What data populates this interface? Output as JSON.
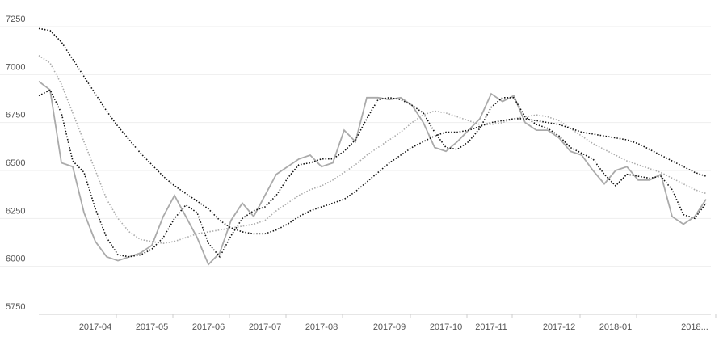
{
  "chart_data": {
    "type": "line",
    "categories": [
      null,
      null,
      null,
      null,
      null,
      "2017-04",
      null,
      null,
      null,
      null,
      "2017-05",
      null,
      null,
      null,
      null,
      "2017-06",
      null,
      null,
      null,
      null,
      "2017-07",
      null,
      null,
      null,
      null,
      "2017-08",
      null,
      null,
      null,
      null,
      null,
      "2017-09",
      null,
      null,
      null,
      null,
      "2017-10",
      null,
      null,
      null,
      "2017-11",
      null,
      null,
      null,
      null,
      null,
      "2017-12",
      null,
      null,
      null,
      null,
      "2018-01",
      null,
      null,
      null,
      null,
      null,
      null,
      "2018...",
      null
    ],
    "series": [
      {
        "color": "#aaaaaa",
        "dash": false,
        "values": [
          6965,
          6920,
          6540,
          6520,
          6280,
          6130,
          6050,
          6030,
          6050,
          6070,
          6110,
          6260,
          6370,
          6260,
          6150,
          6010,
          6070,
          6240,
          6330,
          6260,
          6370,
          6480,
          6520,
          6560,
          6580,
          6520,
          6540,
          6710,
          6650,
          6880,
          6880,
          6870,
          6880,
          6840,
          6750,
          6620,
          6600,
          6650,
          6710,
          6770,
          6900,
          6860,
          6890,
          6750,
          6710,
          6710,
          6670,
          6600,
          6580,
          6500,
          6430,
          6500,
          6520,
          6450,
          6450,
          6480,
          6260,
          6220,
          6260,
          6350
        ]
      },
      {
        "color": "#111111",
        "dash": true,
        "values": [
          6890,
          6920,
          6800,
          6550,
          6490,
          6300,
          6150,
          6060,
          6050,
          6060,
          6090,
          6150,
          6250,
          6320,
          6280,
          6120,
          6050,
          6160,
          6250,
          6290,
          6310,
          6370,
          6460,
          6530,
          6540,
          6560,
          6560,
          6600,
          6660,
          6770,
          6870,
          6880,
          6870,
          6840,
          6800,
          6700,
          6620,
          6610,
          6650,
          6720,
          6830,
          6880,
          6880,
          6780,
          6740,
          6720,
          6680,
          6620,
          6590,
          6560,
          6480,
          6420,
          6480,
          6470,
          6460,
          6470,
          6400,
          6270,
          6250,
          6330
        ]
      },
      {
        "color": "#aaaaaa",
        "dash": true,
        "values": [
          7100,
          7060,
          6950,
          6800,
          6650,
          6500,
          6350,
          6250,
          6180,
          6140,
          6130,
          6120,
          6130,
          6150,
          6170,
          6180,
          6190,
          6200,
          6210,
          6220,
          6240,
          6290,
          6330,
          6370,
          6400,
          6420,
          6450,
          6490,
          6530,
          6580,
          6620,
          6660,
          6700,
          6750,
          6790,
          6810,
          6800,
          6780,
          6760,
          6740,
          6740,
          6750,
          6770,
          6780,
          6790,
          6780,
          6760,
          6720,
          6680,
          6640,
          6610,
          6580,
          6550,
          6530,
          6510,
          6490,
          6460,
          6430,
          6400,
          6380
        ]
      },
      {
        "color": "#111111",
        "dash": true,
        "values": [
          7240,
          7230,
          7170,
          7080,
          6990,
          6900,
          6810,
          6730,
          6660,
          6590,
          6530,
          6470,
          6420,
          6380,
          6340,
          6300,
          6240,
          6200,
          6180,
          6170,
          6170,
          6190,
          6220,
          6260,
          6290,
          6310,
          6330,
          6350,
          6390,
          6440,
          6490,
          6540,
          6580,
          6620,
          6650,
          6680,
          6700,
          6700,
          6710,
          6730,
          6750,
          6760,
          6770,
          6770,
          6760,
          6750,
          6740,
          6720,
          6700,
          6690,
          6680,
          6670,
          6660,
          6640,
          6610,
          6580,
          6550,
          6520,
          6490,
          6470
        ]
      }
    ],
    "ylim": [
      5750,
      7250
    ],
    "yticks": [
      5750,
      6000,
      6250,
      6500,
      6750,
      7000,
      7250
    ],
    "grid": true
  }
}
